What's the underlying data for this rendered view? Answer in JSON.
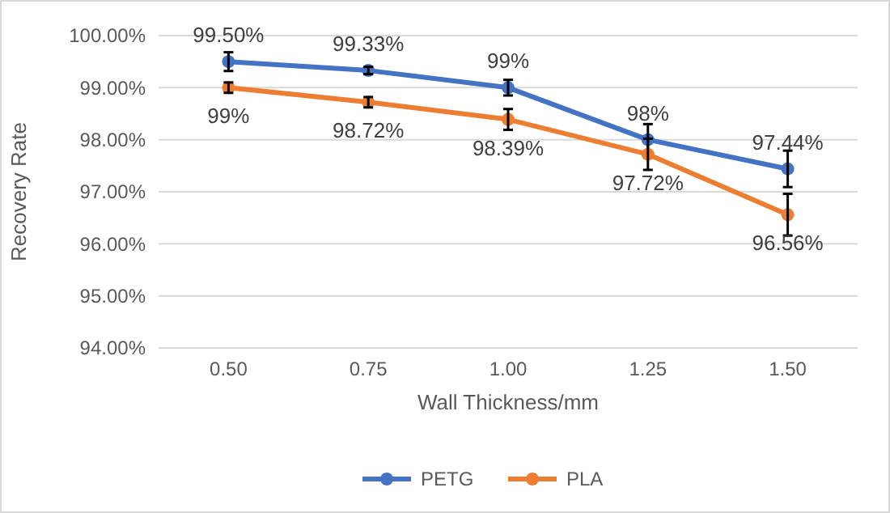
{
  "chart_data": {
    "type": "line",
    "xlabel": "Wall Thickness/mm",
    "ylabel": "Recovery Rate",
    "categories": [
      "0.50",
      "0.75",
      "1.00",
      "1.25",
      "1.50"
    ],
    "ylim": [
      94,
      100
    ],
    "yticks": [
      {
        "value": 94,
        "label": "94.00%"
      },
      {
        "value": 95,
        "label": "95.00%"
      },
      {
        "value": 96,
        "label": "96.00%"
      },
      {
        "value": 97,
        "label": "97.00%"
      },
      {
        "value": 98,
        "label": "98.00%"
      },
      {
        "value": 99,
        "label": "99.00%"
      },
      {
        "value": 100,
        "label": "100.00%"
      }
    ],
    "grid": "y",
    "legend": "bottom",
    "marker": "circle",
    "line_style": "solid",
    "series": [
      {
        "name": "PETG",
        "color": "#4472c4",
        "values": [
          99.5,
          99.33,
          99,
          98,
          97.44
        ],
        "errors": [
          0.18,
          0.07,
          0.15,
          0.3,
          0.35
        ],
        "value_labels": [
          "99.50%",
          "99.33%",
          "99%",
          "98%",
          "97.44%"
        ]
      },
      {
        "name": "PLA",
        "color": "#ed7d31",
        "values": [
          99,
          98.72,
          98.39,
          97.72,
          96.56
        ],
        "errors": [
          0.1,
          0.1,
          0.2,
          0.3,
          0.4
        ],
        "value_labels": [
          "99%",
          "98.72%",
          "98.39%",
          "97.72%",
          "96.56%"
        ]
      }
    ]
  }
}
